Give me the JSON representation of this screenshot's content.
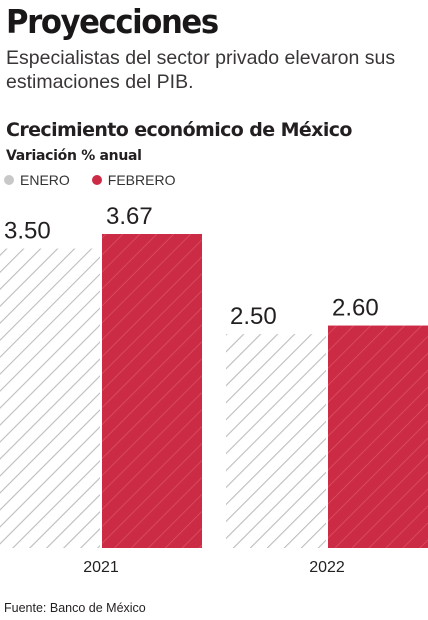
{
  "header": {
    "title": "Proyecciones",
    "subtitle": "Especialistas del sector privado elevaron sus estimaciones del PIB."
  },
  "chart_data": {
    "type": "bar",
    "title": "Crecimiento económico de México",
    "subtitle": "Variación % anual",
    "categories": [
      "2021",
      "2022"
    ],
    "series": [
      {
        "name": "ENERO",
        "values": [
          3.5,
          2.5
        ],
        "labels": [
          "3.50",
          "2.50"
        ],
        "color": "#c8c8c8",
        "pattern": "diagonal-hatch"
      },
      {
        "name": "FEBRERO",
        "values": [
          3.67,
          2.6
        ],
        "labels": [
          "3.67",
          "2.60"
        ],
        "color": "#cc2b45"
      }
    ],
    "ylim": [
      0,
      3.67
    ],
    "grid": false,
    "legend_position": "top-left",
    "xlabel": "",
    "ylabel": ""
  },
  "footer": {
    "source": "Fuente: Banco de México"
  }
}
